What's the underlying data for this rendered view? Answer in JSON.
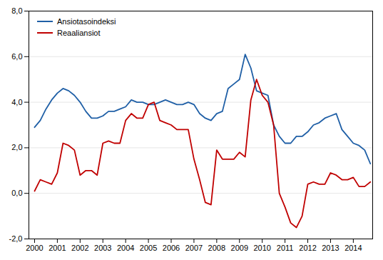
{
  "chart_data": {
    "type": "line",
    "x": [
      2000,
      2000.25,
      2000.5,
      2000.75,
      2001,
      2001.25,
      2001.5,
      2001.75,
      2002,
      2002.25,
      2002.5,
      2002.75,
      2003,
      2003.25,
      2003.5,
      2003.75,
      2004,
      2004.25,
      2004.5,
      2004.75,
      2005,
      2005.25,
      2005.5,
      2005.75,
      2006,
      2006.25,
      2006.5,
      2006.75,
      2007,
      2007.25,
      2007.5,
      2007.75,
      2008,
      2008.25,
      2008.5,
      2008.75,
      2009,
      2009.25,
      2009.5,
      2009.75,
      2010,
      2010.25,
      2010.5,
      2010.75,
      2011,
      2011.25,
      2011.5,
      2011.75,
      2012,
      2012.25,
      2012.5,
      2012.75,
      2013,
      2013.25,
      2013.5,
      2013.75,
      2014,
      2014.25,
      2014.5,
      2014.75
    ],
    "series": [
      {
        "name": "Ansiotasoindeksi",
        "color": "#1F5FA6",
        "values": [
          2.9,
          3.2,
          3.7,
          4.1,
          4.4,
          4.6,
          4.5,
          4.3,
          4.0,
          3.6,
          3.3,
          3.3,
          3.4,
          3.6,
          3.6,
          3.7,
          3.8,
          4.1,
          4.0,
          4.0,
          3.9,
          3.9,
          4.0,
          4.1,
          4.0,
          3.9,
          3.9,
          4.0,
          3.9,
          3.5,
          3.3,
          3.2,
          3.5,
          3.6,
          4.6,
          4.8,
          5.0,
          6.1,
          5.5,
          4.5,
          4.4,
          4.3,
          3.0,
          2.5,
          2.2,
          2.2,
          2.5,
          2.5,
          2.7,
          3.0,
          3.1,
          3.3,
          3.4,
          3.5,
          2.8,
          2.5,
          2.2,
          2.1,
          1.9,
          1.3
        ]
      },
      {
        "name": "Reaaliansiot",
        "color": "#C00000",
        "values": [
          0.1,
          0.6,
          0.5,
          0.4,
          0.9,
          2.2,
          2.1,
          1.9,
          0.8,
          1.0,
          1.0,
          0.8,
          2.2,
          2.3,
          2.2,
          2.2,
          3.2,
          3.5,
          3.3,
          3.3,
          3.9,
          4.0,
          3.2,
          3.1,
          3.0,
          2.8,
          2.8,
          2.8,
          1.5,
          0.6,
          -0.4,
          -0.5,
          1.9,
          1.5,
          1.5,
          1.5,
          1.8,
          1.6,
          4.1,
          5.0,
          4.3,
          4.0,
          3.0,
          0.0,
          -0.6,
          -1.3,
          -1.5,
          -1.0,
          0.4,
          0.5,
          0.4,
          0.4,
          0.9,
          0.8,
          0.6,
          0.6,
          0.7,
          0.3,
          0.3,
          0.5
        ]
      }
    ],
    "xlim": [
      1999.75,
      2014.85
    ],
    "xticks": [
      2000,
      2001,
      2002,
      2003,
      2004,
      2005,
      2006,
      2007,
      2008,
      2009,
      2010,
      2011,
      2012,
      2013,
      2014
    ],
    "ylim": [
      -2.0,
      8.0
    ],
    "yticks": [
      {
        "value": -2.0,
        "label": "-2,0"
      },
      {
        "value": 0.0,
        "label": "0,0"
      },
      {
        "value": 2.0,
        "label": "2,0"
      },
      {
        "value": 4.0,
        "label": "4,0"
      },
      {
        "value": 6.0,
        "label": "6,0"
      },
      {
        "value": 8.0,
        "label": "8,0"
      }
    ],
    "grid": true,
    "legend": "upper left"
  }
}
